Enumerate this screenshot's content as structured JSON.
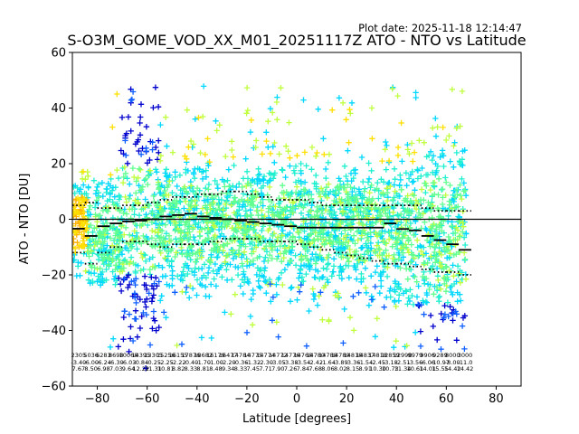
{
  "plot_date": "Plot date: 2025-11-18 12:14:47",
  "chart_data": {
    "type": "scatter",
    "title": "S-O3M_GOME_VOD_XX_M01_20251117Z ATO - NTO vs Latitude",
    "xlabel": "Latitude [degrees]",
    "ylabel": "ATO - NTO [DU]",
    "xlim": [
      -90,
      90
    ],
    "ylim": [
      -60,
      60
    ],
    "x_ticks": [
      -80,
      -60,
      -40,
      -20,
      0,
      20,
      40,
      60,
      80
    ],
    "y_ticks": [
      -60,
      -40,
      -20,
      0,
      20,
      40,
      60
    ],
    "zero_line": 0,
    "marker": "+",
    "colors": {
      "dark_blue": "#0000cd",
      "blue": "#1060ff",
      "cyan": "#00d8ff",
      "aqua": "#20f0d0",
      "light_green": "#60ff90",
      "yellow_green": "#c0ff40",
      "yellow": "#ffe000",
      "orange": "#ffb000"
    },
    "mean_lat": [
      -87.5,
      -82.5,
      -77.5,
      -72.5,
      -67.5,
      -62.5,
      -57.5,
      -52.5,
      -47.5,
      -42.5,
      -37.5,
      -32.5,
      -27.5,
      -22.5,
      -17.5,
      -12.5,
      -7.5,
      -2.5,
      2.5,
      7.5,
      12.5,
      17.5,
      22.5,
      27.5,
      32.5,
      37.5,
      42.5,
      47.5,
      52.5,
      57.5,
      62.5,
      67.5
    ],
    "mean_values": [
      -3.4,
      -6.0,
      -2.5,
      -1.5,
      -0.8,
      -0.5,
      0.0,
      1.0,
      1.5,
      2.0,
      1.0,
      0.5,
      0.0,
      -0.5,
      -1.0,
      -1.5,
      -2.0,
      -2.5,
      -3.0,
      -3.0,
      -3.0,
      -3.0,
      -3.0,
      -3.0,
      -3.0,
      -1.5,
      -3.5,
      -4.0,
      -6.0,
      -7.5,
      -9.0,
      -11.0
    ],
    "sigma_upper": [
      5,
      6,
      4,
      4,
      5,
      5,
      6,
      7,
      8,
      8,
      9,
      9,
      10,
      10,
      9,
      8,
      7,
      7,
      7,
      6,
      5,
      5,
      5,
      5,
      5,
      5,
      5,
      5,
      4,
      3,
      3,
      3
    ],
    "sigma_lower": [
      -12,
      -16,
      -12,
      -10,
      -8,
      -8,
      -9,
      -10,
      -9,
      -9,
      -9,
      -8,
      -7,
      -7,
      -7,
      -8,
      -8,
      -8,
      -9,
      -10,
      -11,
      -12,
      -13,
      -14,
      -15,
      -16,
      -16,
      -17,
      -18,
      -19,
      -19,
      -20
    ],
    "stat_rows": [
      [
        "2305",
        "5036",
        "6283",
        "8698",
        "10068",
        "14395",
        "13305",
        "15256",
        "16155",
        "17876",
        "18682",
        "16179",
        "16477",
        "14784",
        "14775",
        "14774",
        "14772",
        "14776",
        "14768",
        "14780",
        "14788",
        "14780",
        "14818",
        "14837",
        "14818",
        "12859",
        "12998",
        "9979",
        "9906",
        "9289",
        "8000",
        "3000"
      ],
      [
        "-3.40",
        "-6.00",
        "-6.24",
        "-6.30",
        "-6.03",
        "-0.84",
        "-0.25",
        "-2.25",
        "-2.22",
        "-0.40",
        "-1.70",
        "-1.00",
        "-2.20",
        "-0.36",
        "-1.32",
        "-2.30",
        "-3.05",
        "-3.38",
        "-3.54",
        "-2.42",
        "-1.64",
        "-3.89",
        "-3.36",
        "-1.54",
        "-2.45",
        "-3.18",
        "-2.51",
        "-3.56",
        "-6.06",
        "-10.97",
        "-8.00",
        "-11.0"
      ],
      [
        "7.67",
        "8.50",
        "6.98",
        "7.03",
        "9.64",
        "12.22",
        "11.31",
        "10.81",
        "8.82",
        "8.33",
        "8.81",
        "8.48",
        "9.34",
        "8.33",
        "7.45",
        "7.71",
        "7.90",
        "7.26",
        "7.84",
        "7.68",
        "8.06",
        "8.02",
        "8.15",
        "8.91",
        "10.30",
        "10.73",
        "11.34",
        "10.61",
        "14.01",
        "15.55",
        "14.42",
        "14.42"
      ]
    ],
    "series_description_bands": [
      {
        "lat_from": -90,
        "lat_to": -84,
        "y_center": -4,
        "spread": 24,
        "color": "yellow"
      },
      {
        "lat_from": -84,
        "lat_to": -70,
        "y_center": -6,
        "spread": 34,
        "color": "cyan"
      },
      {
        "lat_from": -70,
        "lat_to": -55,
        "y_center": -5,
        "spread": 55,
        "color": "dark_blue"
      },
      {
        "lat_from": -55,
        "lat_to": -35,
        "y_center": 0,
        "spread": 30,
        "color": "cyan"
      },
      {
        "lat_from": -35,
        "lat_to": 35,
        "y_center": -2,
        "spread": 28,
        "color": "light_green"
      },
      {
        "lat_from": 35,
        "lat_to": 50,
        "y_center": -3,
        "spread": 30,
        "color": "cyan"
      },
      {
        "lat_from": 50,
        "lat_to": 68,
        "y_center": -8,
        "spread": 40,
        "color": "blue"
      }
    ]
  }
}
